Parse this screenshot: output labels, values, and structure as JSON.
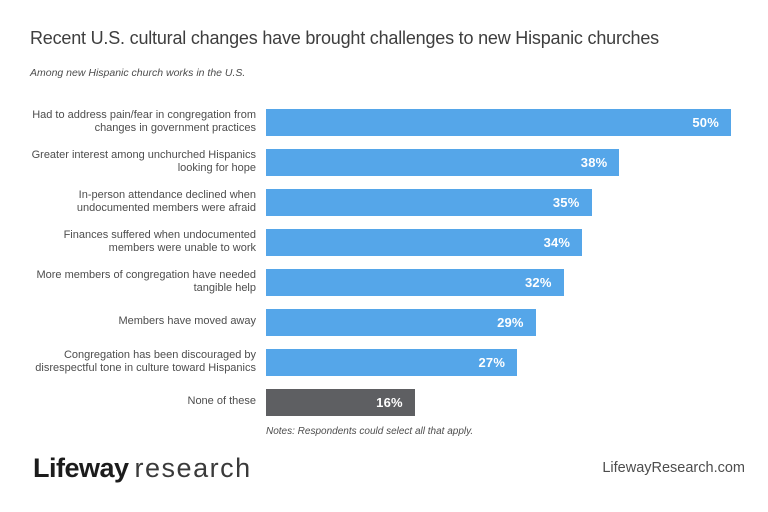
{
  "page": {
    "title": "Recent U.S. cultural changes have brought challenges to new Hispanic churches",
    "subtitle": "Among new Hispanic church works in the U.S.",
    "notes": "Notes: Respondents could select all that apply."
  },
  "footer": {
    "brand_bold": "Lifeway",
    "brand_light": "research",
    "website": "LifewayResearch.com"
  },
  "colors": {
    "background": "#ffffff",
    "bar_blue": "#55a6e9",
    "bar_gray": "#5e5f62",
    "title_text": "#3e3e3e",
    "label_text": "#4d4d4d",
    "value_text": "#ffffff"
  },
  "chart_data": {
    "type": "bar",
    "orientation": "horizontal",
    "title": "Recent U.S. cultural changes have brought challenges to new Hispanic churches",
    "subtitle": "Among new Hispanic church works in the U.S.",
    "notes": "Notes: Respondents could select all that apply.",
    "unit": "%",
    "xlim": [
      0,
      50
    ],
    "grid": false,
    "legend": false,
    "value_labels": "inside-right",
    "categories": [
      "Had to address pain/fear in congregation from changes in government practices",
      "Greater interest among unchurched Hispanics looking for hope",
      "In-person attendance declined when undocumented members were afraid",
      "Finances suffered when undocumented members were unable to work",
      "More members of congregation have needed tangible help",
      "Members have moved away",
      "Congregation has been discouraged by disrespectful tone in culture toward Hispanics",
      "None of these"
    ],
    "values": [
      50,
      38,
      35,
      34,
      32,
      29,
      27,
      16
    ],
    "bar_colors": [
      "#55a6e9",
      "#55a6e9",
      "#55a6e9",
      "#55a6e9",
      "#55a6e9",
      "#55a6e9",
      "#55a6e9",
      "#5e5f62"
    ]
  }
}
